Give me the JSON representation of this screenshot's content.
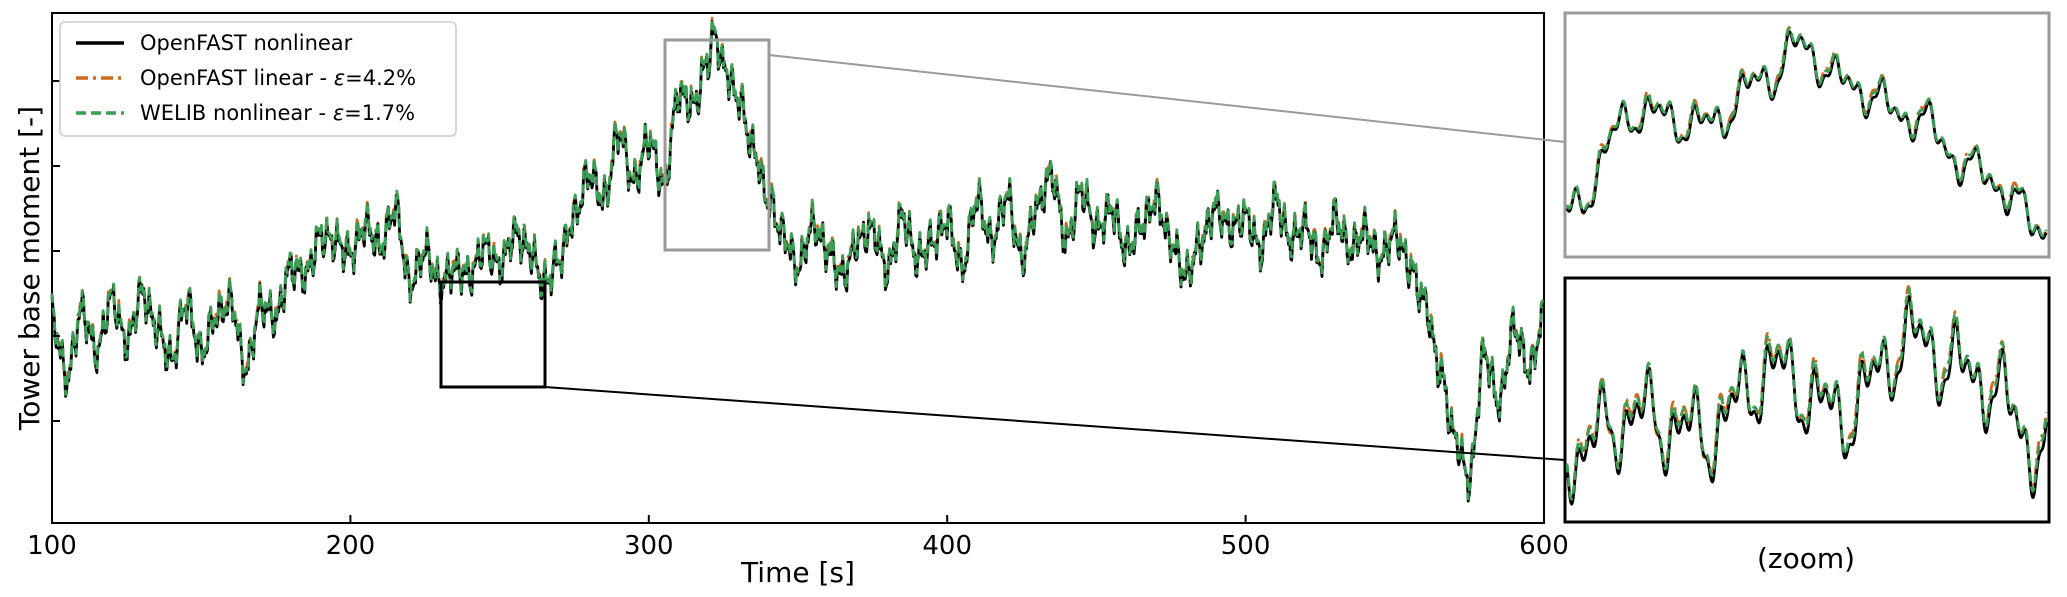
{
  "chart_data": [
    {
      "type": "line",
      "panel": "main",
      "xlabel": "Time [s]",
      "ylabel": "Tower base moment [-]",
      "xlim": [
        100,
        600
      ],
      "ylim": [
        -1.1,
        1.9
      ],
      "x_ticks": [
        "100",
        "200",
        "300",
        "400",
        "500",
        "600"
      ],
      "y_ticks_labeled": false,
      "legend": {
        "placement": "top-left",
        "entries": [
          {
            "name": "OpenFAST nonlinear",
            "prefix": "OpenFAST nonlinear",
            "epsilon": ""
          },
          {
            "name": "OpenFAST linear",
            "prefix": "OpenFAST linear - ",
            "epsilon": "=4.2%"
          },
          {
            "name": "WELIB nonlinear",
            "prefix": "WELIB nonlinear - ",
            "epsilon": "=1.7%"
          }
        ]
      },
      "x": [
        100,
        105,
        110,
        115,
        120,
        125,
        130,
        135,
        140,
        145,
        150,
        155,
        160,
        165,
        170,
        175,
        180,
        185,
        190,
        195,
        200,
        205,
        210,
        215,
        220,
        225,
        230,
        235,
        240,
        245,
        250,
        255,
        260,
        265,
        270,
        275,
        280,
        285,
        290,
        295,
        300,
        305,
        310,
        315,
        320,
        322,
        325,
        330,
        335,
        340,
        345,
        350,
        355,
        360,
        365,
        370,
        375,
        380,
        385,
        390,
        395,
        400,
        405,
        410,
        415,
        420,
        425,
        430,
        435,
        440,
        445,
        450,
        455,
        460,
        465,
        470,
        475,
        480,
        485,
        490,
        495,
        500,
        505,
        510,
        515,
        520,
        525,
        530,
        535,
        540,
        545,
        550,
        555,
        560,
        565,
        570,
        575,
        580,
        585,
        590,
        595,
        600
      ],
      "series": [
        {
          "name": "OpenFAST nonlinear",
          "color": "#000000",
          "style": "solid",
          "values": [
            0.1,
            -0.25,
            0.15,
            -0.1,
            0.22,
            -0.05,
            0.25,
            0.05,
            -0.15,
            0.2,
            -0.1,
            0.12,
            0.2,
            -0.2,
            0.18,
            0.1,
            0.4,
            0.35,
            0.58,
            0.55,
            0.48,
            0.65,
            0.52,
            0.75,
            0.3,
            0.5,
            0.3,
            0.4,
            0.35,
            0.52,
            0.4,
            0.6,
            0.5,
            0.3,
            0.45,
            0.7,
            0.95,
            0.8,
            1.2,
            0.9,
            1.15,
            0.88,
            1.42,
            1.35,
            1.62,
            1.78,
            1.58,
            1.4,
            1.1,
            0.8,
            0.6,
            0.4,
            0.65,
            0.5,
            0.35,
            0.55,
            0.62,
            0.38,
            0.7,
            0.45,
            0.55,
            0.68,
            0.4,
            0.8,
            0.55,
            0.82,
            0.45,
            0.75,
            0.95,
            0.55,
            0.85,
            0.62,
            0.75,
            0.5,
            0.65,
            0.8,
            0.55,
            0.35,
            0.55,
            0.75,
            0.62,
            0.7,
            0.5,
            0.8,
            0.55,
            0.65,
            0.45,
            0.7,
            0.5,
            0.62,
            0.45,
            0.6,
            0.4,
            0.2,
            -0.2,
            -0.6,
            -0.85,
            -0.1,
            -0.4,
            0.05,
            -0.2,
            0.1
          ]
        },
        {
          "name": "OpenFAST linear",
          "color": "#d2691e",
          "style": "dashdot",
          "epsilon_percent": 4.2
        },
        {
          "name": "WELIB nonlinear",
          "color": "#3a9e56",
          "style": "dashed",
          "epsilon_percent": 1.7
        }
      ]
    },
    {
      "type": "line",
      "panel": "zoom-top",
      "box_color": "#9a9a9a",
      "xlim": [
        305,
        340
      ],
      "note": "magnified view of the gray-boxed region"
    },
    {
      "type": "line",
      "panel": "zoom-bottom",
      "box_color": "#000000",
      "xlim": [
        230,
        265
      ],
      "label": "(zoom)",
      "note": "magnified view of the black-boxed region"
    }
  ]
}
